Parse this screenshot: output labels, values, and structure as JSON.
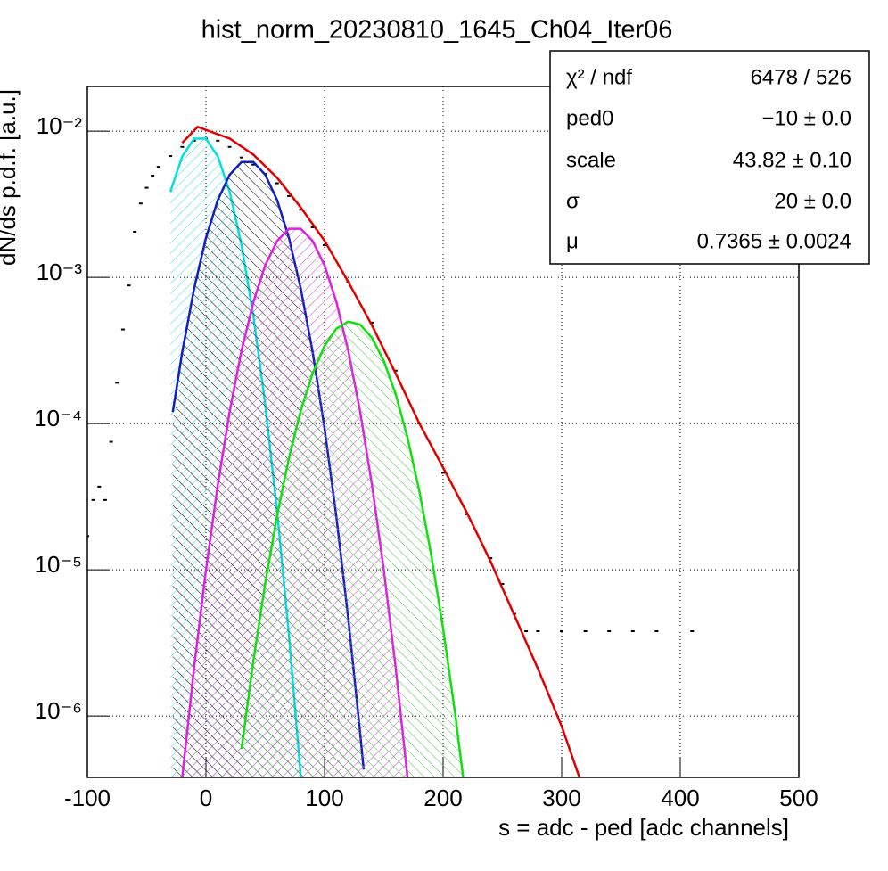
{
  "chart_data": {
    "type": "line",
    "title": "hist_norm_20230810_1645_Ch04_Iter06",
    "xlabel": "s = adc - ped [adc channels]",
    "ylabel": "dN/ds p.d.f. [a.u.]",
    "xlim": [
      -100,
      500
    ],
    "xticks": [
      -100,
      0,
      100,
      200,
      300,
      400,
      500
    ],
    "ylim": [
      3.8e-07,
      0.0202
    ],
    "ylog": true,
    "yticks": [
      {
        "value": 1e-06,
        "label": "10⁻⁶"
      },
      {
        "value": 1e-05,
        "label": "10⁻⁵"
      },
      {
        "value": 0.0001,
        "label": "10⁻⁴"
      },
      {
        "value": 0.001,
        "label": "10⁻³"
      },
      {
        "value": 0.01,
        "label": "10⁻²"
      }
    ],
    "grid": true,
    "stats": [
      [
        "χ² / ndf",
        "6478 / 526"
      ],
      [
        "ped0",
        "−10 ± 0.0"
      ],
      [
        "scale",
        "43.82 ± 0.10"
      ],
      [
        "σ",
        "20 ± 0.0"
      ],
      [
        "μ",
        "0.7365 ± 0.0024"
      ]
    ],
    "series": [
      {
        "style": "points",
        "color": "#000000",
        "x": [
          -100,
          -95,
          -90,
          -85,
          -80,
          -75,
          -70,
          -65,
          -60,
          -55,
          -50,
          -45,
          -40,
          -30,
          -20,
          -10,
          0,
          10,
          20,
          30,
          40,
          50,
          60,
          70,
          80,
          90,
          100,
          120,
          140,
          160,
          180,
          200,
          220,
          240,
          250,
          260,
          270,
          280,
          300,
          320,
          340,
          360,
          380,
          410
        ],
        "values": [
          1.7e-05,
          3e-05,
          3.7e-05,
          3e-05,
          7.5e-05,
          0.00019,
          0.00044,
          0.00088,
          0.00205,
          0.0032,
          0.0041,
          0.00496,
          0.0057,
          0.00675,
          0.0078,
          0.0086,
          0.0089,
          0.0086,
          0.0078,
          0.0066,
          0.0059,
          0.0051,
          0.0044,
          0.0036,
          0.0029,
          0.0022,
          0.00166,
          0.00093,
          0.00049,
          0.00023,
          0.0001,
          4.6e-05,
          2.4e-05,
          1.2e-05,
          8e-06,
          5e-06,
          3.8e-06,
          3.8e-06,
          3.8e-06,
          3.8e-06,
          3.8e-06,
          3.8e-06,
          3.8e-06,
          3.8e-06
        ]
      },
      {
        "style": "hatch",
        "color": "#00e0e0",
        "hatch_color": "#40d8d8",
        "x": [
          -30,
          -20,
          -10,
          0,
          10,
          20,
          30,
          40,
          50,
          60,
          70,
          80
        ],
        "values": [
          0.00385,
          0.00672,
          0.00889,
          0.00889,
          0.00672,
          0.00385,
          0.00166,
          0.000544,
          0.000135,
          2.52e-05,
          3.57e-06,
          3.8e-07
        ]
      },
      {
        "style": "hatch",
        "color": "#1020c0",
        "hatch_color": "#000000",
        "x": [
          -28,
          -20,
          -10,
          0,
          10,
          20,
          30,
          40,
          50,
          60,
          70,
          80,
          90,
          100,
          110,
          120,
          130,
          133
        ],
        "values": [
          0.00012,
          0.000308,
          0.000835,
          0.00186,
          0.00338,
          0.00503,
          0.00614,
          0.00614,
          0.00503,
          0.00338,
          0.00186,
          0.000835,
          0.000308,
          9.29e-05,
          2.3e-05,
          4.65e-06,
          7.7e-07,
          4.3e-07
        ]
      },
      {
        "style": "hatch",
        "color": "#e020e0",
        "hatch_color": "#d040d0",
        "x": [
          -20,
          -10,
          0,
          10,
          20,
          30,
          40,
          50,
          60,
          70,
          80,
          90,
          100,
          110,
          120,
          130,
          140,
          150,
          160,
          170
        ],
        "values": [
          3.8e-07,
          2.14e-06,
          9.96e-06,
          3.81e-05,
          0.000121,
          0.000315,
          0.000679,
          0.00121,
          0.00177,
          0.00215,
          0.00215,
          0.00177,
          0.00121,
          0.000679,
          0.000315,
          0.000121,
          3.81e-05,
          9.96e-06,
          2.14e-06,
          3.8e-07
        ]
      },
      {
        "style": "hatch",
        "color": "#10e010",
        "hatch_color": "#40c040",
        "x": [
          30,
          40,
          50,
          60,
          70,
          80,
          90,
          100,
          110,
          120,
          130,
          140,
          150,
          160,
          170,
          180,
          190,
          200,
          210,
          220
        ],
        "values": [
          5.95e-07,
          2.38e-06,
          8.09e-06,
          2.35e-05,
          5.82e-05,
          0.000123,
          0.000221,
          0.00034,
          0.000446,
          0.000498,
          0.000475,
          0.000386,
          0.000268,
          0.000159,
          8e-05,
          3.44e-05,
          1.26e-05,
          3.95e-06,
          1.06e-06,
          2.4e-07
        ]
      },
      {
        "style": "line",
        "color": "#e00000",
        "x": [
          -20,
          -7,
          20,
          40,
          60,
          80,
          100,
          120,
          140,
          160,
          180,
          200,
          220,
          240,
          260,
          280,
          300,
          315
        ],
        "values": [
          0.0083,
          0.0107,
          0.0089,
          0.0069,
          0.0048,
          0.003,
          0.00178,
          0.00093,
          0.00047,
          0.00022,
          0.0001,
          5e-05,
          2.46e-05,
          1.14e-05,
          4.9e-06,
          2.1e-06,
          8.5e-07,
          3.8e-07
        ]
      }
    ]
  }
}
